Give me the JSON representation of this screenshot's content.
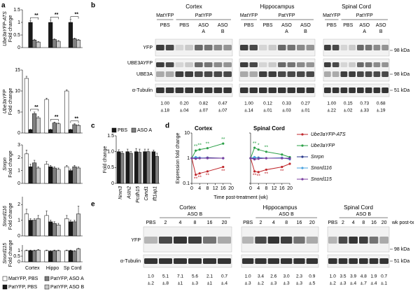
{
  "panel_labels": [
    "a",
    "b",
    "c",
    "d",
    "e"
  ],
  "chart_data": [
    {
      "type": "bar",
      "ylabel": "Ube3aYFP-ATS",
      "ylabel2": "Fold change",
      "ylim": [
        0,
        1.5
      ],
      "yticks": [
        0,
        0.5,
        1,
        1.5
      ],
      "series": [
        {
          "color": "#ffffff",
          "values": [
            0,
            0,
            0
          ]
        },
        {
          "color": "#1a1a1a",
          "values": [
            1.0,
            1.0,
            1.0
          ],
          "errors": [
            0.08,
            0.1,
            0.12
          ]
        },
        {
          "color": "#7f7f7f",
          "values": [
            0.3,
            0.32,
            0.35
          ],
          "errors": [
            0.03,
            0.03,
            0.03
          ]
        },
        {
          "color": "#c8c8c8",
          "values": [
            0.22,
            0.25,
            0.3
          ],
          "errors": [
            0.02,
            0.03,
            0.02
          ]
        }
      ],
      "annotations": [
        {
          "text": "**"
        },
        {
          "text": "**"
        },
        {
          "text": "**"
        }
      ]
    },
    {
      "type": "bar",
      "ylabel": "Ube3aYFP",
      "ylabel2": "Fold change",
      "ylim": [
        0,
        15
      ],
      "yticks": [
        0,
        5,
        10,
        15
      ],
      "series": [
        {
          "color": "#ffffff",
          "values": [
            13,
            8,
            10
          ],
          "errors": [
            0.5,
            0.3,
            0.3
          ]
        },
        {
          "color": "#1a1a1a",
          "values": [
            0.8,
            0.8,
            0.8
          ],
          "errors": [
            0.1,
            0.1,
            0.1
          ]
        },
        {
          "color": "#7f7f7f",
          "values": [
            4.6,
            2.4,
            2.0
          ],
          "errors": [
            0.4,
            0.2,
            0.2
          ]
        },
        {
          "color": "#c8c8c8",
          "values": [
            3.6,
            2.2,
            1.8
          ],
          "errors": [
            0.3,
            0.2,
            0.2
          ]
        }
      ],
      "annotations": [
        {
          "text": "**"
        },
        {
          "text": "**"
        },
        {
          "text": "**"
        }
      ]
    },
    {
      "type": "bar",
      "ylabel": "Snrpn",
      "ylabel2": "Fold change",
      "ylim": [
        0,
        3
      ],
      "yticks": [
        0,
        1,
        2,
        3
      ],
      "series": [
        {
          "color": "#ffffff",
          "values": [
            2.3,
            1.5,
            1.3
          ],
          "errors": [
            0.3,
            0.2,
            0.1
          ]
        },
        {
          "color": "#1a1a1a",
          "values": [
            1.3,
            1.3,
            1.0
          ],
          "errors": [
            0.2,
            0.1,
            0.1
          ]
        },
        {
          "color": "#7f7f7f",
          "values": [
            1.6,
            1.2,
            1.3
          ],
          "errors": [
            0.2,
            0.1,
            0.1
          ]
        },
        {
          "color": "#c8c8c8",
          "values": [
            1.2,
            1.1,
            1.2
          ],
          "errors": [
            0.1,
            0.1,
            0.1
          ]
        }
      ]
    },
    {
      "type": "bar",
      "ylabel": "Snord116",
      "ylabel2": "Fold change",
      "ylim": [
        0,
        2.5
      ],
      "yticks": [
        0,
        1,
        2
      ],
      "series": [
        {
          "color": "#ffffff",
          "values": [
            1.4,
            1.3,
            1.1
          ],
          "errors": [
            0.3,
            0.3,
            0.2
          ]
        },
        {
          "color": "#1a1a1a",
          "values": [
            1.0,
            0.9,
            0.9
          ],
          "errors": [
            0.1,
            0.1,
            0.1
          ]
        },
        {
          "color": "#7f7f7f",
          "values": [
            1.0,
            0.8,
            0.9
          ],
          "errors": [
            0.1,
            0.1,
            0.1
          ]
        },
        {
          "color": "#c8c8c8",
          "values": [
            1.1,
            0.7,
            1.4
          ],
          "errors": [
            0.2,
            0.1,
            0.5
          ]
        }
      ]
    },
    {
      "type": "bar",
      "ylabel": "Snord115",
      "ylabel2": "Fold change",
      "ylim": [
        0,
        1.5
      ],
      "yticks": [
        0,
        0.5,
        1
      ],
      "categories": [
        "Cortex",
        "Hippo",
        "Sp Cord"
      ],
      "series": [
        {
          "name": "MatYFP, PBS",
          "color": "#ffffff",
          "values": [
            1.0,
            1.0,
            1.0
          ],
          "errors": [
            0.05,
            0.05,
            0.05
          ]
        },
        {
          "name": "PatYFP, PBS",
          "color": "#1a1a1a",
          "values": [
            1.0,
            0.95,
            1.0
          ],
          "errors": [
            0.05,
            0.05,
            0.05
          ]
        },
        {
          "name": "PatYFP, ASO A",
          "color": "#7f7f7f",
          "values": [
            1.0,
            1.0,
            0.95
          ],
          "errors": [
            0.05,
            0.05,
            0.05
          ]
        },
        {
          "name": "PatYFP, ASO B",
          "color": "#c8c8c8",
          "values": [
            1.05,
            1.0,
            1.15
          ],
          "errors": [
            0.05,
            0.05,
            0.05
          ]
        }
      ]
    },
    {
      "type": "bar",
      "ylabel": "Fold change",
      "ylim": [
        0,
        1.5
      ],
      "yticks": [
        0,
        0.5,
        {
          "value": 1,
          "label": "1.0"
        },
        1.5
      ],
      "categories": [
        "Nrxn3",
        "Astn2",
        "Pcdh15",
        "Cand1",
        "Ift1ap1"
      ],
      "series": [
        {
          "name": "PBS",
          "color": "#1a1a1a",
          "values": [
            1.0,
            1.0,
            1.0,
            1.0,
            1.0
          ],
          "errors": [
            0.06,
            0.08,
            0.1,
            0.08,
            0.05
          ]
        },
        {
          "name": "ASO A",
          "color": "#7f7f7f",
          "values": [
            0.95,
            0.95,
            0.98,
            1.0,
            0.85
          ],
          "errors": [
            0.06,
            0.06,
            0.1,
            0.08,
            0.1
          ]
        }
      ]
    },
    {
      "type": "line",
      "title": "Cortex",
      "ylabel": "Expression fold change",
      "xlabel": "Time post-treatment (wk)",
      "log": true,
      "ylim": [
        0.1,
        10
      ],
      "yticks": [
        0.1,
        1,
        10
      ],
      "xlim": [
        0,
        20
      ],
      "xticks": [
        0,
        4,
        8,
        12,
        16,
        20
      ],
      "x": [
        0,
        2,
        4,
        8,
        16
      ],
      "series": [
        {
          "color": "#c0282d",
          "values": [
            1,
            0.22,
            0.25,
            0.3,
            0.45
          ]
        },
        {
          "color": "#2ca048",
          "values": [
            1,
            2.0,
            2.2,
            2.5,
            3.8
          ]
        },
        {
          "color": "#2b3a8c",
          "values": [
            1,
            1,
            1,
            1.05,
            1.0
          ]
        },
        {
          "color": "#4aa3df",
          "values": [
            1,
            1.1,
            1.05,
            1.0,
            1.0
          ]
        },
        {
          "color": "#7b3fa0",
          "values": [
            1,
            0.95,
            1,
            1,
            1.0
          ]
        }
      ],
      "annotations": [
        {
          "text": "**"
        },
        {
          "text": "**"
        },
        {
          "text": "**"
        },
        {
          "text": "**"
        },
        {
          "text": "**"
        },
        {
          "text": "**"
        },
        {
          "text": "**"
        },
        {
          "text": "**"
        }
      ]
    },
    {
      "type": "line",
      "title": "Spinal Cord",
      "log": true,
      "ylim": [
        0.1,
        10
      ],
      "xlim": [
        0,
        20
      ],
      "xticks": [
        0,
        4,
        8,
        12,
        16,
        20
      ],
      "x": [
        0,
        2,
        4,
        8,
        16,
        20
      ],
      "series": [
        {
          "name": "Ube3aYFP-ATS",
          "color": "#c0282d",
          "values": [
            1,
            0.3,
            0.28,
            0.35,
            0.45,
            0.6
          ]
        },
        {
          "name": "Ube3aYFP",
          "color": "#2ca048",
          "values": [
            1,
            2.6,
            2.2,
            1.8,
            1.4,
            1.1
          ]
        },
        {
          "name": "Snrpn",
          "color": "#2b3a8c",
          "values": [
            1,
            1,
            1.05,
            1,
            1,
            1
          ]
        },
        {
          "name": "Snord116",
          "color": "#4aa3df",
          "values": [
            1,
            1.1,
            1.0,
            1.0,
            1.05,
            0.9
          ]
        },
        {
          "name": "Snord115",
          "color": "#7b3fa0",
          "values": [
            1,
            0.9,
            0.95,
            1,
            1,
            0.95
          ]
        }
      ],
      "annotations": [
        {
          "text": "**"
        },
        {
          "text": "*"
        },
        {
          "text": "**"
        },
        {
          "text": "**"
        },
        {
          "text": "**"
        },
        {
          "text": "**"
        },
        {
          "text": "**"
        }
      ]
    }
  ],
  "blots_b": {
    "row_labels": [
      "YFP",
      "UBE3AYFP",
      "UBE3A",
      "α-Tubulin"
    ],
    "markers": [
      "98 kDa",
      "98 kDa",
      "51 kDa"
    ],
    "groups": [
      {
        "title": "Cortex",
        "header_top": [
          "MatYFP",
          "PatYFP"
        ],
        "header_lanes": [
          [
            "PBS"
          ],
          [
            "PBS"
          ],
          [
            "ASO",
            "A"
          ],
          [
            "ASO",
            "B"
          ]
        ],
        "quant": [
          [
            "1.00",
            "±.18"
          ],
          [
            "0.20",
            "±.04"
          ],
          [
            "0.82",
            "±.07"
          ],
          [
            "0.47",
            "±.07"
          ]
        ]
      },
      {
        "title": "Hippocampus",
        "header_top": [
          "MatYFP",
          "PatYFP"
        ],
        "header_lanes": [
          [
            "PBS"
          ],
          [
            "PBS"
          ],
          [
            "ASO",
            "A"
          ],
          [
            "ASO",
            "B"
          ]
        ],
        "quant": [
          [
            "1.00",
            "±.14"
          ],
          [
            "0.12",
            "±.01"
          ],
          [
            "0.33",
            "±.03"
          ],
          [
            "0.27",
            "±.01"
          ]
        ]
      },
      {
        "title": "Spinal Cord",
        "header_top": [
          "MatYFP",
          "PatYFP"
        ],
        "header_lanes": [
          [
            "PBS"
          ],
          [
            "PBS"
          ],
          [
            "ASO",
            "A"
          ],
          [
            "ASO",
            "B"
          ]
        ],
        "quant": [
          [
            "1.00",
            "±.22"
          ],
          [
            "0.15",
            "±.02"
          ],
          [
            "0.73",
            "±.33"
          ],
          [
            "0.68",
            "±.19"
          ]
        ]
      }
    ]
  },
  "blots_e": {
    "row_labels": [
      "YFP",
      "α-Tubulin"
    ],
    "markers": [
      "98 kDa",
      "51 kDa"
    ],
    "lane_unit": "wk post-tx",
    "groups": [
      {
        "title": "Cortex",
        "treatment": "ASO B",
        "lanes": [
          "PBS",
          "2",
          "4",
          "8",
          "16",
          "20"
        ],
        "quant": [
          [
            "1.0",
            "±.2"
          ],
          [
            "5.1",
            "±.8"
          ],
          [
            "7.1",
            "±1"
          ],
          [
            "5.6",
            "±.3"
          ],
          [
            "2.1",
            "±1"
          ],
          [
            "0.7",
            "±.4"
          ]
        ]
      },
      {
        "title": "Hippocampus",
        "treatment": "ASO B",
        "lanes": [
          "PBS",
          "2",
          "4",
          "8",
          "16",
          "20"
        ],
        "quant": [
          [
            "1.0",
            "±.3"
          ],
          [
            "3.4",
            "±.2"
          ],
          [
            "2.6",
            "±.3"
          ],
          [
            "3.0",
            "±.3"
          ],
          [
            "2.3",
            "±.3"
          ],
          [
            "0.9",
            "±.5"
          ]
        ]
      },
      {
        "title": "Spinal Cord",
        "treatment": "ASO B",
        "lanes": [
          "PBS",
          "2",
          "4",
          "8",
          "16",
          "20"
        ],
        "quant": [
          [
            "1.0",
            "±.2"
          ],
          [
            "3.5",
            "±.3"
          ],
          [
            "3.9",
            "±.4"
          ],
          [
            "4.8",
            "±.7"
          ],
          [
            "1.9",
            "±.4"
          ],
          [
            "0.7",
            "±.1"
          ]
        ]
      }
    ]
  }
}
